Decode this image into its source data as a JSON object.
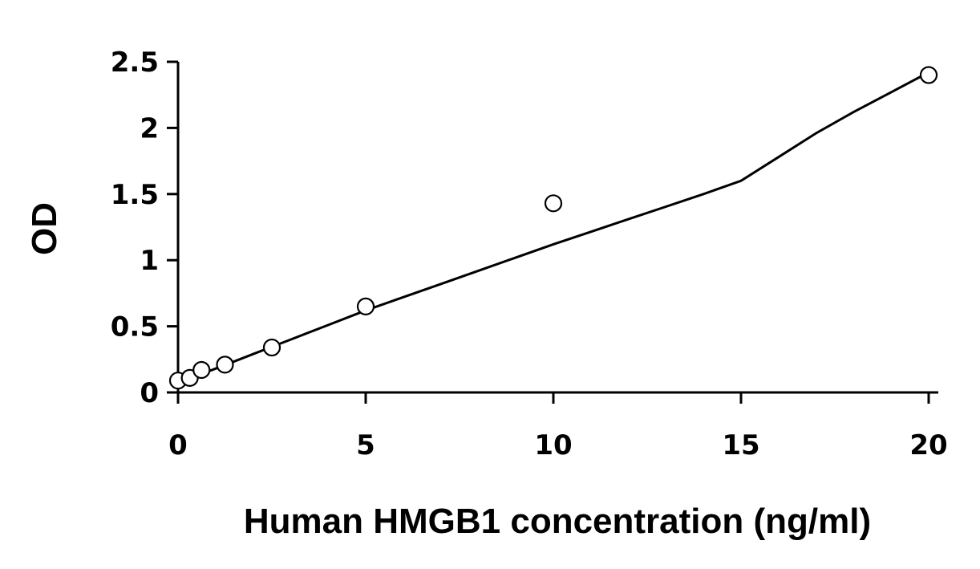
{
  "chart_data": {
    "type": "scatter",
    "xlabel": "Human HMGB1 concentration (ng/ml)",
    "ylabel": "OD",
    "xlim": [
      0,
      20
    ],
    "ylim": [
      0,
      2.5
    ],
    "x_ticks": [
      0,
      5,
      10,
      15,
      20
    ],
    "y_ticks": [
      0,
      0.5,
      1,
      1.5,
      2,
      2.5
    ],
    "x_tick_labels": [
      "0",
      "5",
      "10",
      "15",
      "20"
    ],
    "y_tick_labels": [
      "0",
      "0.5",
      "1",
      "1.5",
      "2",
      "2.5"
    ],
    "grid": false,
    "legend": "none",
    "series": [
      {
        "x": [
          0,
          0.313,
          0.625,
          1.25,
          2.5,
          5,
          10,
          20
        ],
        "y": [
          0.09,
          0.11,
          0.17,
          0.21,
          0.34,
          0.65,
          1.43,
          2.4
        ]
      }
    ],
    "fit_curve": {
      "x": [
        0,
        0.5,
        1,
        1.5,
        2,
        2.5,
        3,
        4,
        5,
        6,
        7,
        8,
        9,
        10,
        11,
        12,
        13,
        14,
        15,
        16,
        17,
        18,
        19,
        20
      ],
      "y": [
        0.07,
        0.125,
        0.18,
        0.235,
        0.29,
        0.345,
        0.4,
        0.51,
        0.62,
        0.72,
        0.82,
        0.92,
        1.02,
        1.12,
        1.215,
        1.31,
        1.405,
        1.5,
        1.6,
        1.78,
        1.96,
        2.12,
        2.27,
        2.42
      ]
    },
    "point_color": "#ffffff",
    "line_color": "#000000"
  }
}
